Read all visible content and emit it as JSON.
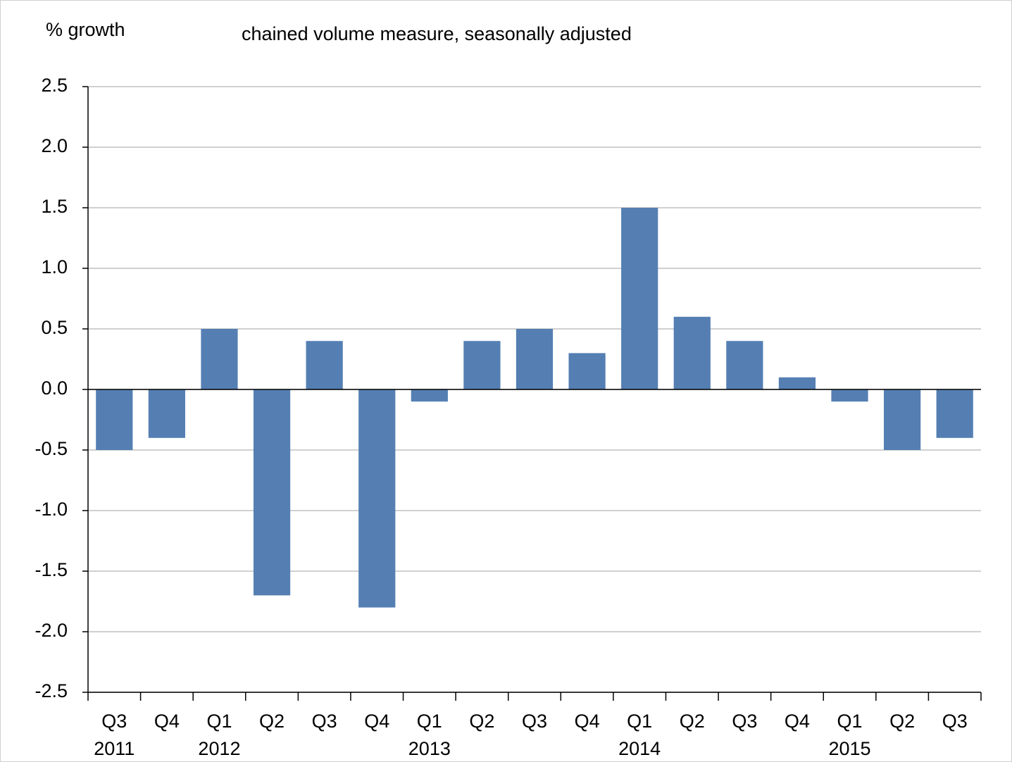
{
  "chart_data": {
    "type": "bar",
    "y_axis_label": "% growth",
    "subtitle": "chained volume measure, seasonally adjusted",
    "categories": [
      "Q3",
      "Q4",
      "Q1",
      "Q2",
      "Q3",
      "Q4",
      "Q1",
      "Q2",
      "Q3",
      "Q4",
      "Q1",
      "Q2",
      "Q3",
      "Q4",
      "Q1",
      "Q2",
      "Q3"
    ],
    "year_labels": [
      "2011",
      null,
      "2012",
      null,
      null,
      null,
      "2013",
      null,
      null,
      null,
      "2014",
      null,
      null,
      null,
      "2015",
      null,
      null
    ],
    "values": [
      -0.5,
      -0.4,
      0.5,
      -1.7,
      0.4,
      -1.8,
      -0.1,
      0.4,
      0.5,
      0.3,
      1.5,
      0.6,
      0.4,
      0.1,
      -0.1,
      -0.5,
      -0.4
    ],
    "color": "#557fb3",
    "ylim": [
      -2.5,
      2.5
    ],
    "yticks": [
      2.5,
      {
        "value": 2,
        "label": "2.0"
      },
      1.5,
      {
        "value": 1,
        "label": "1.0"
      },
      0.5,
      {
        "value": 0,
        "label": "0.0"
      },
      -0.5,
      {
        "value": -1,
        "label": "-1.0"
      },
      -1.5,
      {
        "value": -2,
        "label": "-2.0"
      },
      -2.5
    ],
    "grid": true
  }
}
